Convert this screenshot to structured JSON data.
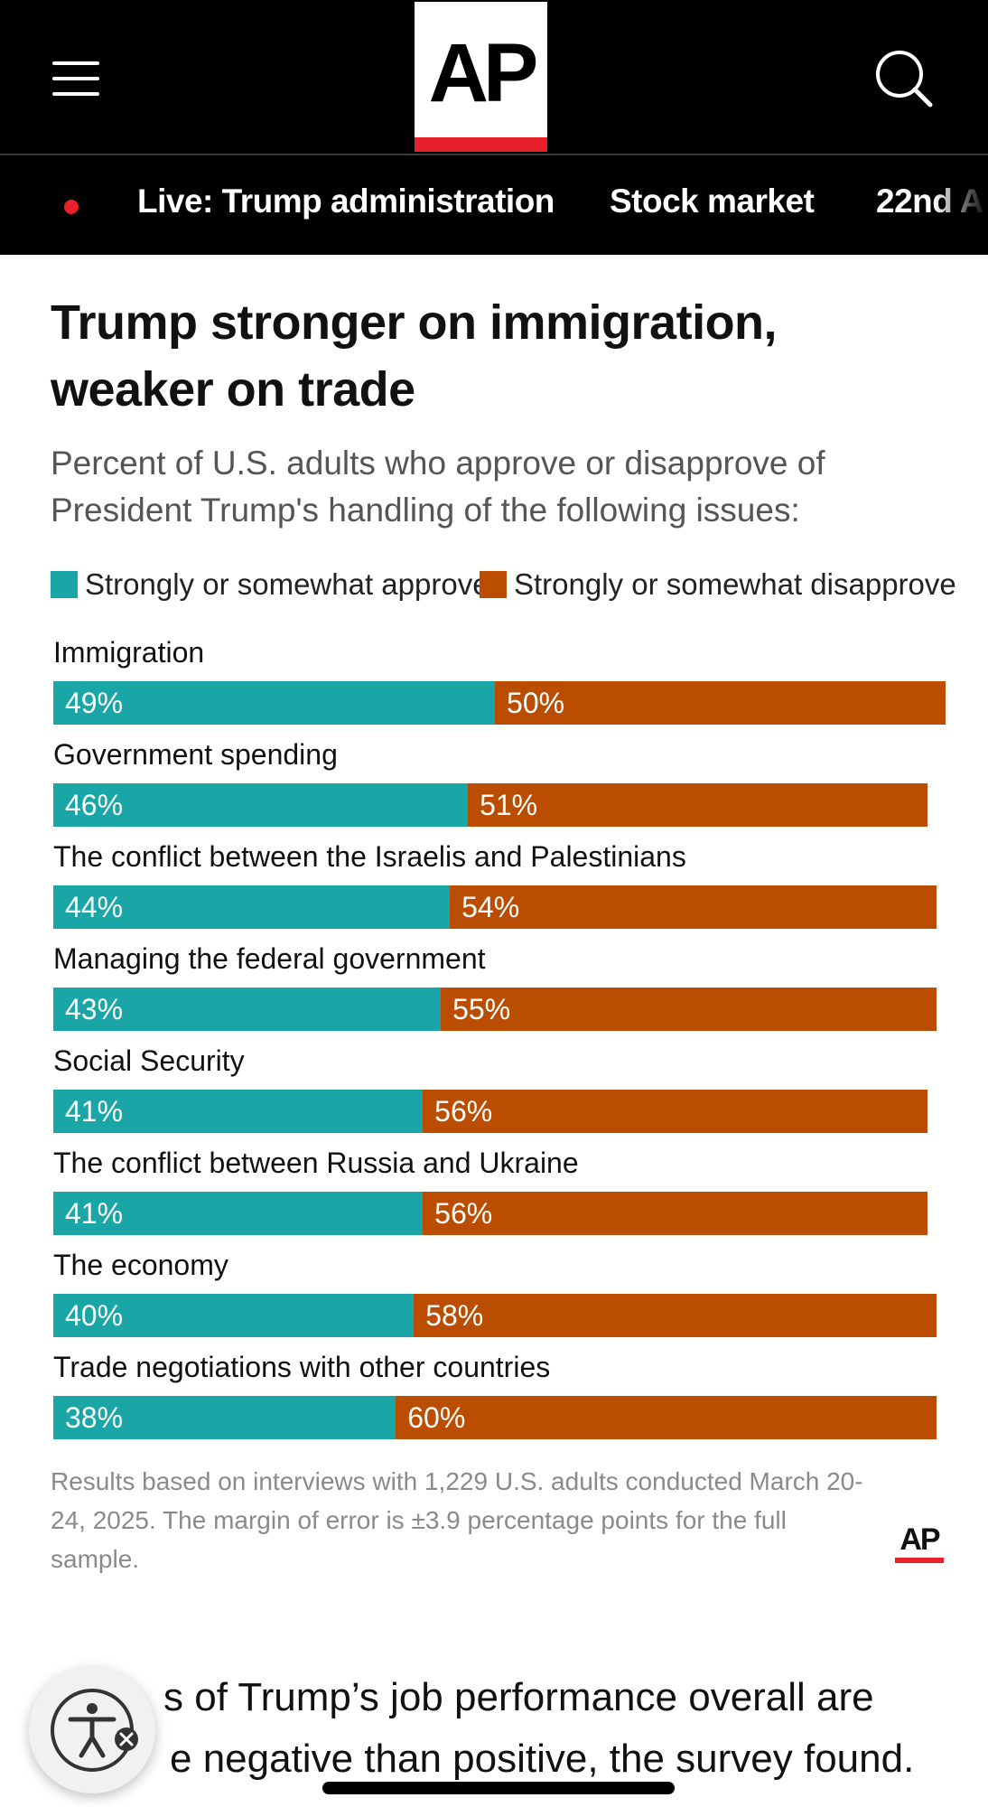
{
  "header": {
    "logo_text": "AP",
    "menu_icon": "hamburger-menu-icon",
    "search_icon": "search-icon"
  },
  "nav": {
    "items": [
      "Live: Trump administration",
      "Stock market",
      "22nd A"
    ],
    "live_indicator_color": "#e8202a"
  },
  "article": {
    "headline": "Trump stronger on immigration, weaker on trade",
    "subtitle": "Percent of U.S. adults who approve or disapprove of President Trump's handling of the following issues:",
    "footnote": "Results based on interviews with 1,229 U.S. adults conducted March 20-24, 2025. The margin of error is ±3.9 percentage points for the full sample.",
    "source_logo": "AP",
    "body_text_line1": "s of Trump’s job performance overall are",
    "body_text_line2": "e negative than positive, the survey found."
  },
  "colors": {
    "approve": "#1aa6a6",
    "disapprove": "#bb4d00",
    "accent": "#e8202a"
  },
  "chart_data": {
    "type": "bar",
    "orientation": "horizontal-stacked",
    "title": "Trump stronger on immigration, weaker on trade",
    "subtitle": "Percent of U.S. adults who approve or disapprove of President Trump's handling of the following issues:",
    "legend_position": "top-left",
    "categories": [
      "Immigration",
      "Government spending",
      "The conflict between the Israelis and Palestinians",
      "Managing the federal government",
      "Social Security",
      "The conflict between Russia and Ukraine",
      "The economy",
      "Trade negotiations with other countries"
    ],
    "series": [
      {
        "name": "Strongly or somewhat approve",
        "color": "#1aa6a6",
        "values": [
          49,
          46,
          44,
          43,
          41,
          41,
          40,
          38
        ]
      },
      {
        "name": "Strongly or somewhat disapprove",
        "color": "#bb4d00",
        "values": [
          50,
          51,
          54,
          55,
          56,
          56,
          58,
          60
        ]
      }
    ],
    "value_suffix": "%",
    "xlim": [
      0,
      100
    ]
  }
}
